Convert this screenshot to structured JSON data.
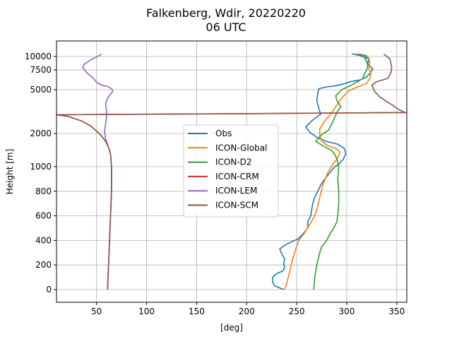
{
  "chart_data": {
    "type": "line",
    "title": "Falkenberg, Wdir, 20220220",
    "subtitle": "06 UTC",
    "xlabel": "[deg]",
    "ylabel": "Height [m]",
    "xlim": [
      10,
      360
    ],
    "x_ticks": [
      50,
      100,
      150,
      200,
      250,
      300,
      350
    ],
    "y_ticks": [
      "0",
      "200",
      "400",
      "600",
      "800",
      "1000",
      "2000",
      "5000",
      "7500",
      "10000"
    ],
    "y_scale": "piecewise: linear 0–1000 m, log-like above 1000 m",
    "grid": true,
    "legend_position": "center",
    "series": [
      {
        "name": "Obs",
        "color": "#1f77b4",
        "points": [
          [
            237,
            0
          ],
          [
            228,
            30
          ],
          [
            226,
            60
          ],
          [
            226,
            100
          ],
          [
            230,
            130
          ],
          [
            236,
            150
          ],
          [
            238,
            180
          ],
          [
            237,
            210
          ],
          [
            238,
            250
          ],
          [
            235,
            290
          ],
          [
            233,
            330
          ],
          [
            238,
            360
          ],
          [
            245,
            390
          ],
          [
            251,
            410
          ],
          [
            256,
            450
          ],
          [
            261,
            500
          ],
          [
            261,
            550
          ],
          [
            264,
            600
          ],
          [
            265,
            650
          ],
          [
            266,
            700
          ],
          [
            268,
            750
          ],
          [
            271,
            800
          ],
          [
            274,
            850
          ],
          [
            278,
            900
          ],
          [
            283,
            950
          ],
          [
            288,
            1000
          ],
          [
            292,
            1050
          ],
          [
            296,
            1150
          ],
          [
            299,
            1300
          ],
          [
            298,
            1450
          ],
          [
            291,
            1600
          ],
          [
            279,
            1700
          ],
          [
            270,
            1850
          ],
          [
            263,
            2050
          ],
          [
            259,
            2300
          ],
          [
            266,
            2650
          ],
          [
            274,
            3000
          ],
          [
            272,
            3400
          ],
          [
            270,
            4000
          ],
          [
            271,
            4600
          ],
          [
            272,
            5100
          ],
          [
            280,
            5300
          ],
          [
            288,
            5400
          ],
          [
            296,
            5600
          ],
          [
            304,
            5900
          ],
          [
            313,
            6100
          ],
          [
            320,
            6500
          ],
          [
            323,
            7000
          ],
          [
            326,
            7700
          ],
          [
            321,
            8500
          ],
          [
            322,
            9500
          ],
          [
            313,
            10200
          ],
          [
            305,
            10600
          ]
        ]
      },
      {
        "name": "ICON-Global",
        "color": "#ff7f0e",
        "points": [
          [
            238,
            0
          ],
          [
            240,
            50
          ],
          [
            243,
            150
          ],
          [
            246,
            250
          ],
          [
            249,
            330
          ],
          [
            252,
            400
          ],
          [
            257,
            450
          ],
          [
            263,
            530
          ],
          [
            268,
            600
          ],
          [
            270,
            650
          ],
          [
            273,
            750
          ],
          [
            276,
            850
          ],
          [
            281,
            950
          ],
          [
            286,
            1050
          ],
          [
            291,
            1200
          ],
          [
            293,
            1350
          ],
          [
            290,
            1450
          ],
          [
            281,
            1550
          ],
          [
            275,
            1700
          ],
          [
            273,
            1900
          ],
          [
            273,
            2200
          ],
          [
            278,
            2600
          ],
          [
            284,
            3000
          ],
          [
            289,
            3500
          ],
          [
            295,
            4200
          ],
          [
            302,
            4900
          ],
          [
            311,
            5300
          ],
          [
            320,
            5700
          ],
          [
            323,
            6300
          ],
          [
            324,
            7000
          ],
          [
            322,
            7800
          ],
          [
            323,
            8700
          ],
          [
            322,
            9700
          ],
          [
            318,
            10300
          ],
          [
            310,
            10600
          ]
        ]
      },
      {
        "name": "ICON-D2",
        "color": "#2ca02c",
        "points": [
          [
            267,
            0
          ],
          [
            268,
            100
          ],
          [
            270,
            200
          ],
          [
            273,
            300
          ],
          [
            275,
            350
          ],
          [
            280,
            400
          ],
          [
            283,
            450
          ],
          [
            287,
            500
          ],
          [
            290,
            550
          ],
          [
            291,
            600
          ],
          [
            292,
            700
          ],
          [
            292,
            800
          ],
          [
            291,
            900
          ],
          [
            292,
            1000
          ],
          [
            291,
            1100
          ],
          [
            289,
            1250
          ],
          [
            285,
            1400
          ],
          [
            276,
            1550
          ],
          [
            269,
            1700
          ],
          [
            275,
            1950
          ],
          [
            282,
            2150
          ],
          [
            285,
            2450
          ],
          [
            288,
            2800
          ],
          [
            291,
            3200
          ],
          [
            294,
            3500
          ],
          [
            290,
            4000
          ],
          [
            289,
            4400
          ],
          [
            295,
            5000
          ],
          [
            303,
            5400
          ],
          [
            311,
            5900
          ],
          [
            316,
            6300
          ],
          [
            318,
            7000
          ],
          [
            320,
            7500
          ],
          [
            321,
            8200
          ],
          [
            320,
            9000
          ],
          [
            318,
            9500
          ],
          [
            320,
            10100
          ],
          [
            313,
            10400
          ]
        ]
      },
      {
        "name": "ICON-CRM",
        "color": "#d62728",
        "points": [
          [
            61,
            0
          ],
          [
            62,
            200
          ],
          [
            63,
            400
          ],
          [
            64,
            600
          ],
          [
            65,
            800
          ],
          [
            65,
            1000
          ],
          [
            64,
            1300
          ],
          [
            62,
            1500
          ],
          [
            59,
            1700
          ],
          [
            55,
            1900
          ],
          [
            50,
            2100
          ],
          [
            44,
            2350
          ],
          [
            35,
            2600
          ],
          [
            22,
            2850
          ],
          [
            10,
            2960
          ],
          [
            200,
            3030
          ],
          [
            360,
            3100
          ]
        ]
      },
      {
        "name": "ICON-LEM",
        "color": "#9467bd",
        "points": [
          [
            61,
            0
          ],
          [
            62,
            200
          ],
          [
            63,
            400
          ],
          [
            64,
            600
          ],
          [
            65,
            800
          ],
          [
            65,
            1000
          ],
          [
            64,
            1300
          ],
          [
            62,
            1500
          ],
          [
            59,
            1800
          ],
          [
            58,
            2100
          ],
          [
            59,
            2400
          ],
          [
            60,
            2800
          ],
          [
            60,
            3200
          ],
          [
            59,
            3700
          ],
          [
            61,
            4200
          ],
          [
            66,
            4800
          ],
          [
            66,
            5000
          ],
          [
            62,
            5300
          ],
          [
            55,
            5500
          ],
          [
            50,
            5800
          ],
          [
            47,
            6300
          ],
          [
            41,
            7000
          ],
          [
            36,
            7900
          ],
          [
            38,
            8500
          ],
          [
            44,
            9300
          ],
          [
            51,
            10000
          ],
          [
            55,
            10500
          ]
        ]
      },
      {
        "name": "ICON-SCM",
        "color": "#8c564b",
        "points": [
          [
            61,
            0
          ],
          [
            62,
            200
          ],
          [
            63,
            400
          ],
          [
            64,
            600
          ],
          [
            65,
            800
          ],
          [
            65,
            1000
          ],
          [
            64,
            1300
          ],
          [
            62,
            1500
          ],
          [
            59,
            1700
          ],
          [
            55,
            1900
          ],
          [
            50,
            2100
          ],
          [
            44,
            2350
          ],
          [
            35,
            2600
          ],
          [
            22,
            2850
          ],
          [
            10,
            2960
          ],
          [
            200,
            3030
          ],
          [
            358,
            3100
          ],
          [
            352,
            3300
          ],
          [
            346,
            3600
          ],
          [
            340,
            3900
          ],
          [
            333,
            4300
          ],
          [
            328,
            4800
          ],
          [
            325,
            5500
          ],
          [
            330,
            5900
          ],
          [
            341,
            6300
          ],
          [
            344,
            7000
          ],
          [
            345,
            8000
          ],
          [
            343,
            9500
          ],
          [
            339,
            10200
          ],
          [
            337,
            10500
          ]
        ]
      }
    ]
  }
}
